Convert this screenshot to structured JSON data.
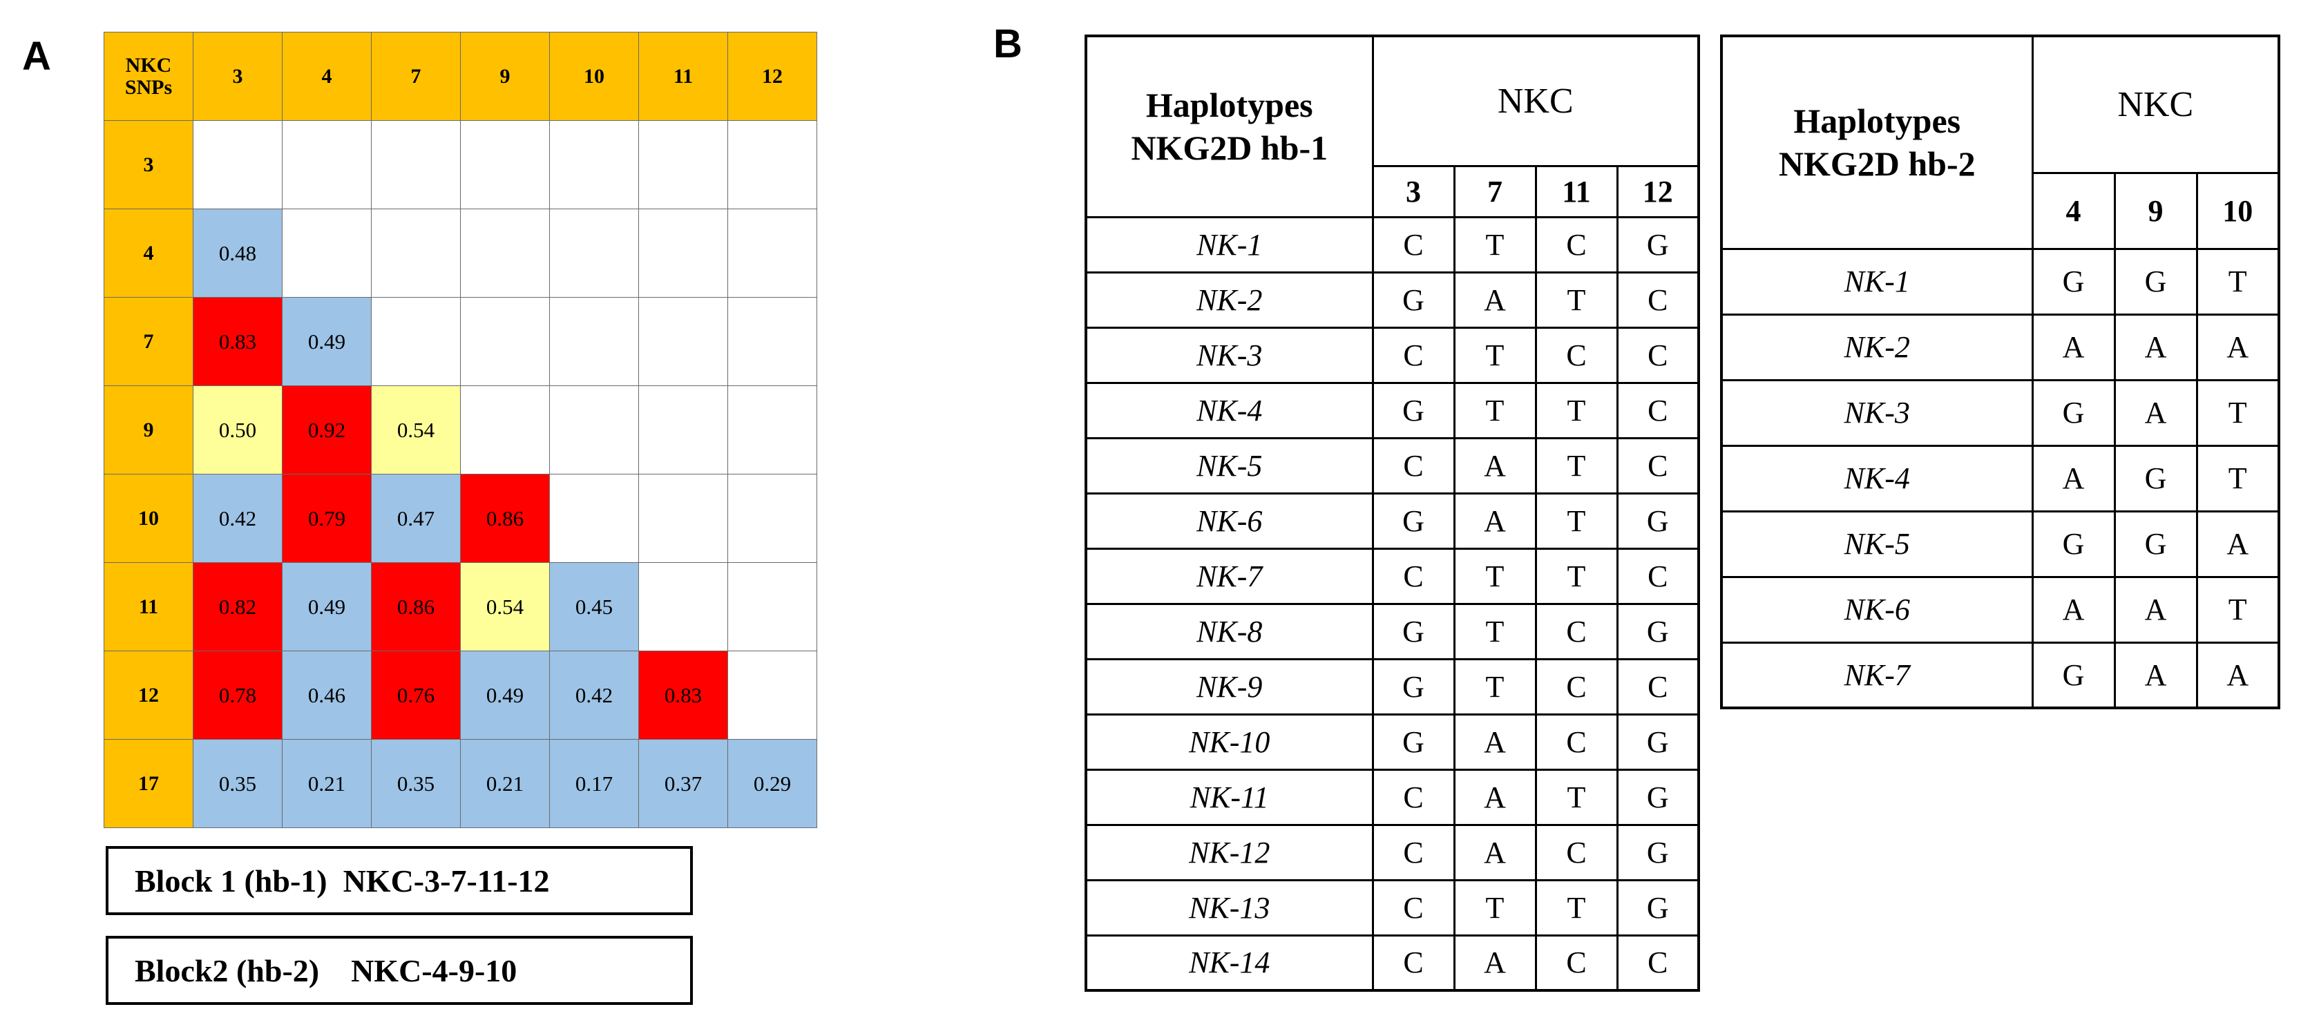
{
  "panel_a": {
    "label": "A",
    "corner": [
      "NKC",
      "SNPs"
    ],
    "col_headers": [
      "3",
      "4",
      "7",
      "9",
      "10",
      "11",
      "12"
    ],
    "rows": [
      {
        "h": "3",
        "cells": [
          [
            "",
            ""
          ],
          [
            "",
            ""
          ],
          [
            "",
            ""
          ],
          [
            "",
            ""
          ],
          [
            "",
            ""
          ],
          [
            "",
            ""
          ],
          [
            "",
            ""
          ]
        ]
      },
      {
        "h": "4",
        "cells": [
          [
            "0.48",
            "b"
          ],
          [
            "",
            ""
          ],
          [
            "",
            ""
          ],
          [
            "",
            ""
          ],
          [
            "",
            ""
          ],
          [
            "",
            ""
          ],
          [
            "",
            ""
          ]
        ]
      },
      {
        "h": "7",
        "cells": [
          [
            "0.83",
            "r"
          ],
          [
            "0.49",
            "b"
          ],
          [
            "",
            ""
          ],
          [
            "",
            ""
          ],
          [
            "",
            ""
          ],
          [
            "",
            ""
          ],
          [
            "",
            ""
          ]
        ]
      },
      {
        "h": "9",
        "cells": [
          [
            "0.50",
            "y"
          ],
          [
            "0.92",
            "r"
          ],
          [
            "0.54",
            "y"
          ],
          [
            "",
            ""
          ],
          [
            "",
            ""
          ],
          [
            "",
            ""
          ],
          [
            "",
            ""
          ]
        ]
      },
      {
        "h": "10",
        "cells": [
          [
            "0.42",
            "b"
          ],
          [
            "0.79",
            "r"
          ],
          [
            "0.47",
            "b"
          ],
          [
            "0.86",
            "r"
          ],
          [
            "",
            ""
          ],
          [
            "",
            ""
          ],
          [
            "",
            ""
          ]
        ]
      },
      {
        "h": "11",
        "cells": [
          [
            "0.82",
            "r"
          ],
          [
            "0.49",
            "b"
          ],
          [
            "0.86",
            "r"
          ],
          [
            "0.54",
            "y"
          ],
          [
            "0.45",
            "b"
          ],
          [
            "",
            ""
          ],
          [
            "",
            ""
          ]
        ]
      },
      {
        "h": "12",
        "cells": [
          [
            "0.78",
            "r"
          ],
          [
            "0.46",
            "b"
          ],
          [
            "0.76",
            "r"
          ],
          [
            "0.49",
            "b"
          ],
          [
            "0.42",
            "b"
          ],
          [
            "0.83",
            "r"
          ],
          [
            "",
            ""
          ]
        ]
      },
      {
        "h": "17",
        "cells": [
          [
            "0.35",
            "b"
          ],
          [
            "0.21",
            "b"
          ],
          [
            "0.35",
            "b"
          ],
          [
            "0.21",
            "b"
          ],
          [
            "0.17",
            "b"
          ],
          [
            "0.37",
            "b"
          ],
          [
            "0.29",
            "b"
          ]
        ]
      }
    ],
    "blocks": [
      "Block 1 (hb-1)  NKC-3-7-11-12",
      "Block2 (hb-2)    NKC-4-9-10"
    ],
    "colors": {
      "header": "#ffc000",
      "blue": "#9dc3e6",
      "red": "#ff0000",
      "yellow": "#ffff99"
    }
  },
  "panel_b": {
    "label": "B",
    "hb1": {
      "title": [
        "Haplotypes",
        "NKG2D hb-1"
      ],
      "group": "NKC",
      "cols": [
        "3",
        "7",
        "11",
        "12"
      ],
      "rows": [
        {
          "name": "NK-1",
          "vals": [
            "C",
            "T",
            "C",
            "G"
          ]
        },
        {
          "name": "NK-2",
          "vals": [
            "G",
            "A",
            "T",
            "C"
          ]
        },
        {
          "name": "NK-3",
          "vals": [
            "C",
            "T",
            "C",
            "C"
          ]
        },
        {
          "name": "NK-4",
          "vals": [
            "G",
            "T",
            "T",
            "C"
          ]
        },
        {
          "name": "NK-5",
          "vals": [
            "C",
            "A",
            "T",
            "C"
          ]
        },
        {
          "name": "NK-6",
          "vals": [
            "G",
            "A",
            "T",
            "G"
          ]
        },
        {
          "name": "NK-7",
          "vals": [
            "C",
            "T",
            "T",
            "C"
          ]
        },
        {
          "name": "NK-8",
          "vals": [
            "G",
            "T",
            "C",
            "G"
          ]
        },
        {
          "name": "NK-9",
          "vals": [
            "G",
            "T",
            "C",
            "C"
          ]
        },
        {
          "name": "NK-10",
          "vals": [
            "G",
            "A",
            "C",
            "G"
          ]
        },
        {
          "name": "NK-11",
          "vals": [
            "C",
            "A",
            "T",
            "G"
          ]
        },
        {
          "name": "NK-12",
          "vals": [
            "C",
            "A",
            "C",
            "G"
          ]
        },
        {
          "name": "NK-13",
          "vals": [
            "C",
            "T",
            "T",
            "G"
          ]
        },
        {
          "name": "NK-14",
          "vals": [
            "C",
            "A",
            "C",
            "C"
          ]
        }
      ]
    },
    "hb2": {
      "title": [
        "Haplotypes",
        "NKG2D hb-2"
      ],
      "group": "NKC",
      "cols": [
        "4",
        "9",
        "10"
      ],
      "rows": [
        {
          "name": "NK-1",
          "vals": [
            "G",
            "G",
            "T"
          ]
        },
        {
          "name": "NK-2",
          "vals": [
            "A",
            "A",
            "A"
          ]
        },
        {
          "name": "NK-3",
          "vals": [
            "G",
            "A",
            "T"
          ]
        },
        {
          "name": "NK-4",
          "vals": [
            "A",
            "G",
            "T"
          ]
        },
        {
          "name": "NK-5",
          "vals": [
            "G",
            "G",
            "A"
          ]
        },
        {
          "name": "NK-6",
          "vals": [
            "A",
            "A",
            "T"
          ]
        },
        {
          "name": "NK-7",
          "vals": [
            "G",
            "A",
            "A"
          ]
        }
      ]
    }
  }
}
